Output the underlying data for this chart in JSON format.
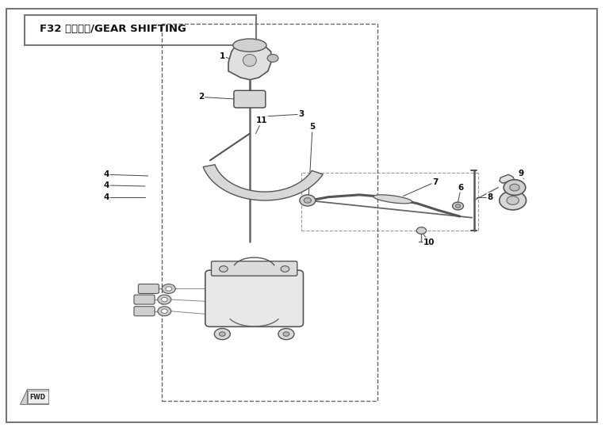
{
  "title": "F32 换档机构/GEAR SHIFTING",
  "bg_color": "#ffffff",
  "border_color": "#555555",
  "line_color": "#555555"
}
